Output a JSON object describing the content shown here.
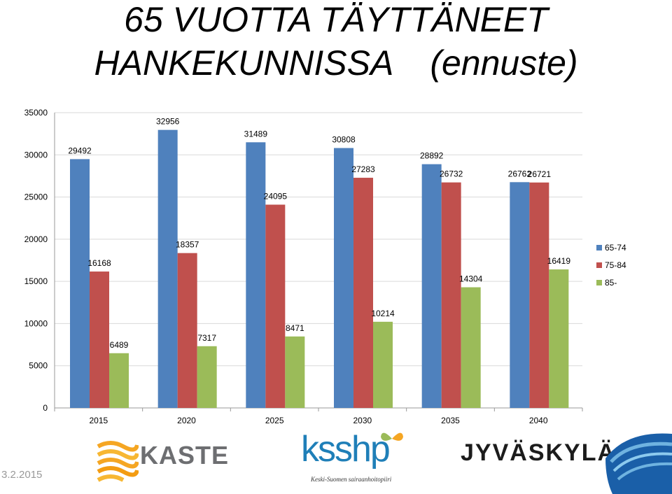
{
  "slide": {
    "title_line1": "65 VUOTTA TÄYTTÄNEET",
    "title_line2": "HANKEKUNNISSA",
    "title_paren": "(ennuste)",
    "date": "3.2.2015"
  },
  "logos": {
    "kaste": "KASTE",
    "ksshp": "ksshp",
    "ksshp_sub": "Keski-Suomen sairaanhoitopiiri",
    "jyvaskyla": "JYVÄSKYLÄ"
  },
  "colors": {
    "series_65_74": "#4f81bd",
    "series_75_84": "#c0504d",
    "series_85": "#9bbb59",
    "grid": "#d9d9d9"
  },
  "chart_data": {
    "type": "bar",
    "categories": [
      "2015",
      "2020",
      "2025",
      "2030",
      "2035",
      "2040"
    ],
    "series": [
      {
        "name": "65-74",
        "values": [
          29492,
          32956,
          31489,
          30808,
          28892,
          26762
        ]
      },
      {
        "name": "75-84",
        "values": [
          16168,
          18357,
          24095,
          27283,
          26732,
          26721
        ]
      },
      {
        "name": "85-",
        "values": [
          6489,
          7317,
          8471,
          10214,
          14304,
          16419
        ]
      }
    ],
    "yticks": [
      "0",
      "5000",
      "10000",
      "15000",
      "20000",
      "25000",
      "30000",
      "35000"
    ],
    "ylim": [
      0,
      35000
    ],
    "grid": true,
    "legend": "right"
  }
}
